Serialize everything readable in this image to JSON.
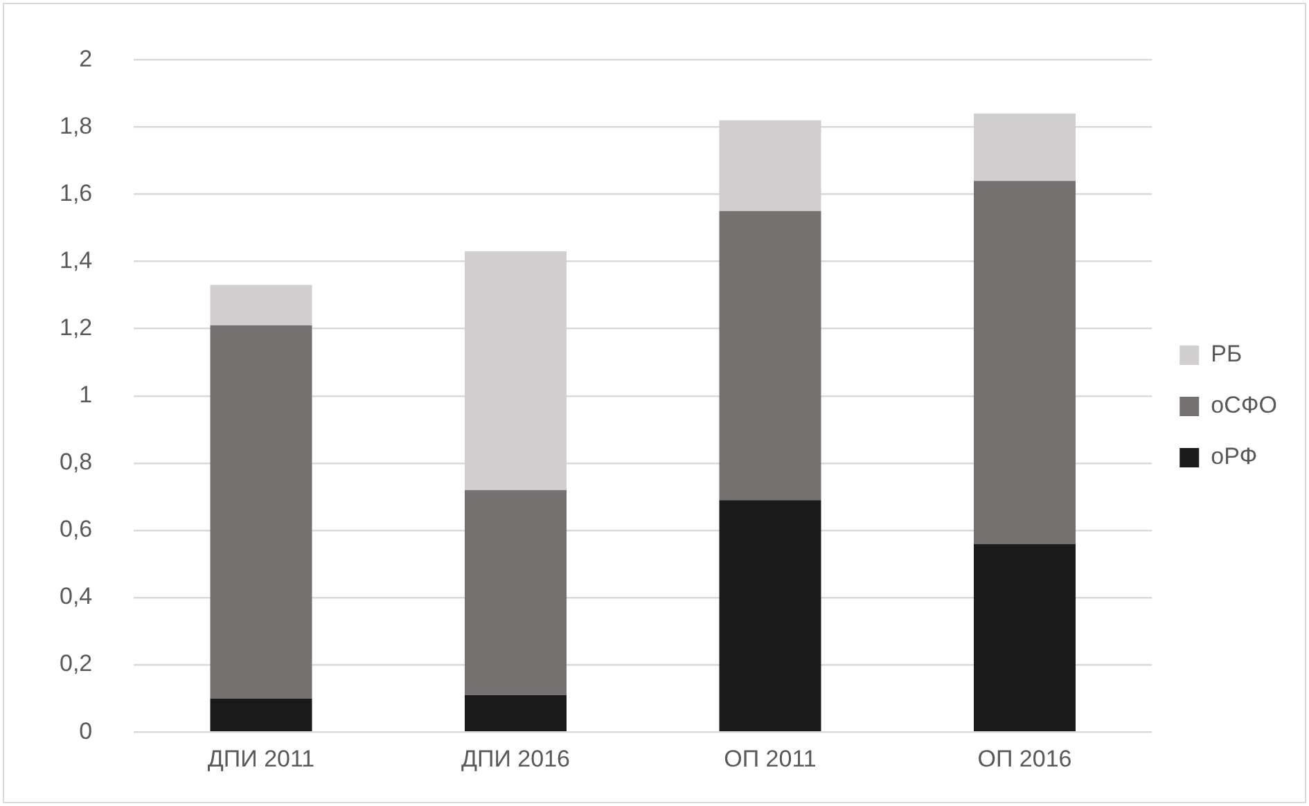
{
  "chart_data": {
    "type": "bar",
    "stacked": true,
    "categories": [
      "ДПИ 2011",
      "ДПИ 2016",
      "ОП 2011",
      "ОП 2016"
    ],
    "series": [
      {
        "name": "оРФ",
        "color": "#1a1a1a",
        "values": [
          0.1,
          0.11,
          0.69,
          0.56
        ]
      },
      {
        "name": "оСФО",
        "color": "#767171",
        "values": [
          1.11,
          0.61,
          0.86,
          1.08
        ]
      },
      {
        "name": "РБ",
        "color": "#d0cece",
        "values": [
          0.12,
          0.71,
          0.27,
          0.2
        ]
      }
    ],
    "ylim": [
      0,
      2
    ],
    "yticks": [
      0,
      {
        "value": 0.2,
        "label": "0,2"
      },
      {
        "value": 0.4,
        "label": "0,4"
      },
      {
        "value": 0.6,
        "label": "0,6"
      },
      {
        "value": 0.8,
        "label": "0,8"
      },
      1,
      {
        "value": 1.2,
        "label": "1,2"
      },
      {
        "value": 1.4,
        "label": "1,4"
      },
      {
        "value": 1.6,
        "label": "1,6"
      },
      {
        "value": 1.8,
        "label": "1,8"
      },
      2
    ],
    "grid": "y",
    "legend": "right"
  }
}
